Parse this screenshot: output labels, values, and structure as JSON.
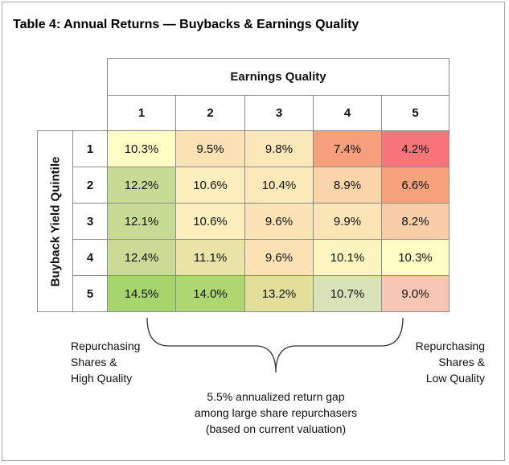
{
  "title": "Table 4: Annual Returns — Buybacks & Earnings Quality",
  "table": {
    "column_header": "Earnings Quality",
    "row_header": "Buyback Yield Quintile",
    "columns": [
      "1",
      "2",
      "3",
      "4",
      "5"
    ],
    "rows": [
      {
        "label": "1",
        "cells": [
          "10.3%",
          "9.5%",
          "9.8%",
          "7.4%",
          "4.2%"
        ],
        "colors": [
          "#fefec5",
          "#fbe2b5",
          "#fbe8b8",
          "#f5a07a",
          "#f7747a"
        ]
      },
      {
        "label": "2",
        "cells": [
          "12.2%",
          "10.6%",
          "10.4%",
          "8.9%",
          "6.6%"
        ],
        "colors": [
          "#c7da93",
          "#fdefbd",
          "#fbe9b9",
          "#f9d5a9",
          "#f6a27b"
        ]
      },
      {
        "label": "3",
        "cells": [
          "12.1%",
          "10.6%",
          "9.6%",
          "9.9%",
          "8.2%"
        ],
        "colors": [
          "#c8db94",
          "#fdefbd",
          "#fbe3b5",
          "#fbe5b6",
          "#f9cda8"
        ]
      },
      {
        "label": "4",
        "cells": [
          "12.4%",
          "11.1%",
          "9.6%",
          "10.1%",
          "10.3%"
        ],
        "colors": [
          "#c9db95",
          "#e9e4a6",
          "#fbe3b5",
          "#fdf5c0",
          "#fefec5"
        ]
      },
      {
        "label": "5",
        "cells": [
          "14.5%",
          "14.0%",
          "13.2%",
          "10.7%",
          "9.0%"
        ],
        "colors": [
          "#a6d56e",
          "#aed772",
          "#e2df9b",
          "#d9e2b8",
          "#f8c7b3"
        ]
      }
    ]
  },
  "annotations": {
    "left": [
      "Repurchasing",
      "Shares &",
      "High Quality"
    ],
    "right": [
      "Repurchasing",
      "Shares &",
      "Low Quality"
    ],
    "bottom": [
      "5.5% annualized return gap",
      "among large share repurchasers",
      "(based on current valuation)"
    ]
  }
}
